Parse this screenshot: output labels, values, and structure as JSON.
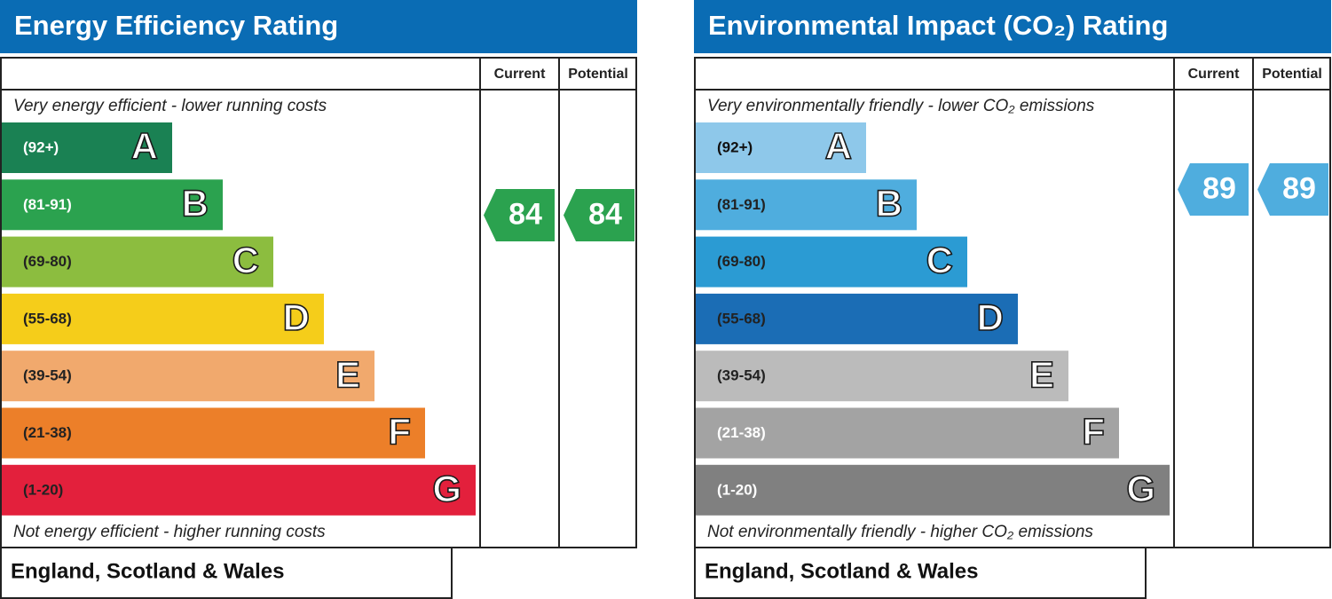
{
  "energy": {
    "title": "Energy Efficiency Rating",
    "columns": [
      "Current",
      "Potential"
    ],
    "top_note": "Very energy efficient - lower running costs",
    "bands": [
      {
        "range": "(92+)",
        "letter": "A",
        "color": "#1a8153",
        "text_color": "#ffffff"
      },
      {
        "range": "(81-91)",
        "letter": "B",
        "color": "#2ba24f",
        "text_color": "#ffffff"
      },
      {
        "range": "(69-80)",
        "letter": "C",
        "color": "#8cbd3f",
        "text_color": "#222222"
      },
      {
        "range": "(55-68)",
        "letter": "D",
        "color": "#f5cd1a",
        "text_color": "#222222"
      },
      {
        "range": "(39-54)",
        "letter": "E",
        "color": "#f1a96d",
        "text_color": "#222222"
      },
      {
        "range": "(21-38)",
        "letter": "F",
        "color": "#ec7f29",
        "text_color": "#222222"
      },
      {
        "range": "(1-20)",
        "letter": "G",
        "color": "#e3203c",
        "text_color": "#222222"
      }
    ],
    "current": "84",
    "potential": "84",
    "rating_color": "#2ba24f",
    "bottom_note": "Not energy efficient - higher running costs",
    "footer": "England, Scotland & Wales"
  },
  "environmental": {
    "title": "Environmental Impact (CO₂) Rating",
    "columns": [
      "Current",
      "Potential"
    ],
    "top_note": "Very environmentally friendly - lower CO₂ emissions",
    "bands": [
      {
        "range": "(92+)",
        "letter": "A",
        "color": "#8ec8ea",
        "text_color": "#111111"
      },
      {
        "range": "(81-91)",
        "letter": "B",
        "color": "#4fadde",
        "text_color": "#222222"
      },
      {
        "range": "(69-80)",
        "letter": "C",
        "color": "#2b9bd3",
        "text_color": "#222222"
      },
      {
        "range": "(55-68)",
        "letter": "D",
        "color": "#1b6db5",
        "text_color": "#222222"
      },
      {
        "range": "(39-54)",
        "letter": "E",
        "color": "#bbbbbb",
        "text_color": "#222222"
      },
      {
        "range": "(21-38)",
        "letter": "F",
        "color": "#a3a3a3",
        "text_color": "#ffffff"
      },
      {
        "range": "(1-20)",
        "letter": "G",
        "color": "#808080",
        "text_color": "#ffffff"
      }
    ],
    "current": "89",
    "potential": "89",
    "rating_color": "#4fadde",
    "bottom_note": "Not environmentally friendly - higher CO₂ emissions",
    "footer": "England, Scotland & Wales"
  }
}
